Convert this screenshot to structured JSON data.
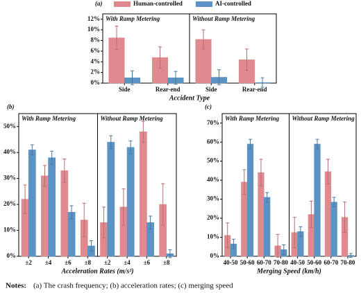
{
  "chart_data": [
    {
      "type": "bar",
      "panel": "(a)",
      "x_label": "Accident Type",
      "series": [
        {
          "name": "Human-controlled",
          "color": "#e08a8f"
        },
        {
          "name": "AI-controlled",
          "color": "#5b93c4"
        }
      ],
      "categories": [
        "Side",
        "Rear-end"
      ],
      "ylim": [
        0,
        13
      ],
      "yticks": [
        {
          "value": 0,
          "label": "0%"
        },
        {
          "value": 2,
          "label": "2%"
        },
        {
          "value": 4,
          "label": "4%"
        },
        {
          "value": 6,
          "label": "6%"
        },
        {
          "value": 8,
          "label": "8%"
        },
        {
          "value": 10,
          "label": "10%"
        },
        {
          "value": 12,
          "label": "12%"
        }
      ],
      "facets": [
        {
          "title": "With Ramp Metering",
          "values": [
            [
              8.5,
              4.8
            ],
            [
              1.0,
              1.0
            ]
          ],
          "errors": [
            [
              2.2,
              2.0
            ],
            [
              1.3,
              1.2
            ]
          ]
        },
        {
          "title": "Without Ramp Metering",
          "values": [
            [
              8.2,
              4.4
            ],
            [
              1.1,
              0.1
            ]
          ],
          "errors": [
            [
              1.8,
              2.0
            ],
            [
              1.4,
              0.9
            ]
          ]
        }
      ]
    },
    {
      "type": "bar",
      "panel": "(b)",
      "x_label": "Acceleration Rates (m/s²)",
      "series": [
        {
          "color": "#e08a8f"
        },
        {
          "color": "#5b93c4"
        }
      ],
      "categories": [
        "±2",
        "±4",
        "±6",
        "±8"
      ],
      "ylim": [
        0,
        55
      ],
      "yticks": [
        {
          "value": 0,
          "label": "0%"
        },
        {
          "value": 10,
          "label": "10%"
        },
        {
          "value": 20,
          "label": "20%"
        },
        {
          "value": 30,
          "label": "30%"
        },
        {
          "value": 40,
          "label": "40%"
        },
        {
          "value": 50,
          "label": "50%"
        }
      ],
      "facets": [
        {
          "title": "With Ramp Metering",
          "values": [
            [
              22,
              31,
              33,
              14
            ],
            [
              41,
              38,
              17,
              4
            ]
          ],
          "errors": [
            [
              5.5,
              4,
              4.5,
              6.5
            ],
            [
              2,
              2.5,
              2.5,
              2
            ]
          ]
        },
        {
          "title": "Without Ramp Metering",
          "values": [
            [
              13,
              19,
              48,
              20
            ],
            [
              44,
              42,
              13,
              1
            ]
          ],
          "errors": [
            [
              6,
              7,
              4,
              8
            ],
            [
              2.5,
              2.5,
              2.5,
              1.5
            ]
          ]
        }
      ]
    },
    {
      "type": "bar",
      "panel": "(c)",
      "x_label": "Merging Speed (km/h)",
      "series": [
        {
          "color": "#e08a8f"
        },
        {
          "color": "#5b93c4"
        }
      ],
      "categories": [
        "40-50",
        "50-60",
        "60-70",
        "70-80"
      ],
      "ylim": [
        0,
        75
      ],
      "yticks": [
        {
          "value": 0,
          "label": "0%"
        },
        {
          "value": 10,
          "label": "10%"
        },
        {
          "value": 20,
          "label": "20%"
        },
        {
          "value": 30,
          "label": "30%"
        },
        {
          "value": 40,
          "label": "40%"
        },
        {
          "value": 50,
          "label": "50%"
        },
        {
          "value": 60,
          "label": "60%"
        },
        {
          "value": 70,
          "label": "70%"
        }
      ],
      "facets": [
        {
          "title": "With Ramp Metering",
          "values": [
            [
              11,
              39,
              44,
              5.5
            ],
            [
              6.5,
              59,
              31,
              3.5
            ]
          ],
          "errors": [
            [
              6.5,
              6.5,
              7,
              6
            ],
            [
              2.5,
              2.5,
              2.5,
              2.5
            ]
          ]
        },
        {
          "title": "Without Ramp Metering",
          "values": [
            [
              12.5,
              22,
              44.5,
              20.5
            ],
            [
              13,
              59,
              28.5,
              0.5
            ]
          ],
          "errors": [
            [
              8,
              7,
              6.5,
              8
            ],
            [
              2.5,
              2.5,
              2.5,
              1
            ]
          ]
        }
      ]
    }
  ],
  "notes": {
    "label": "Notes:",
    "text": "(a) The crash frequency; (b) acceleration rates; (c) merging speed"
  }
}
